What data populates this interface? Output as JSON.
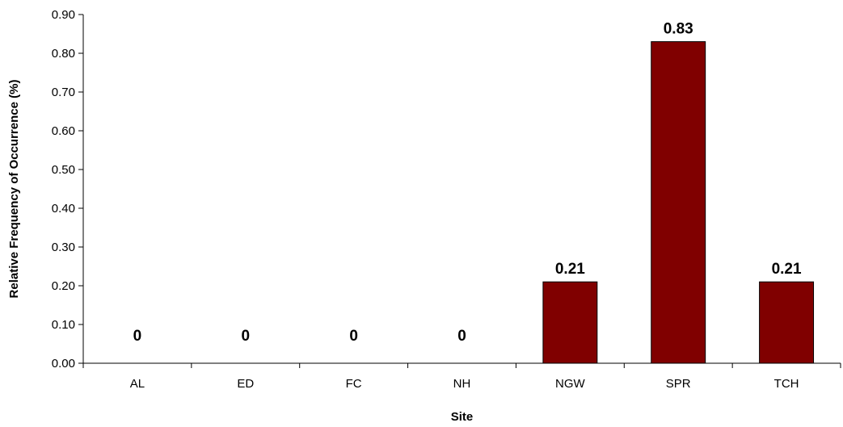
{
  "chart_data": {
    "type": "bar",
    "title": "",
    "xlabel": "Site",
    "ylabel": "Relative Frequency of Occurrence (%)",
    "categories": [
      "AL",
      "ED",
      "FC",
      "NH",
      "NGW",
      "SPR",
      "TCH"
    ],
    "values": [
      0,
      0,
      0,
      0,
      0.21,
      0.83,
      0.21
    ],
    "data_labels": [
      "0",
      "0",
      "0",
      "0",
      "0.21",
      "0.83",
      "0.21"
    ],
    "yticks": [
      "0.00",
      "0.10",
      "0.20",
      "0.30",
      "0.40",
      "0.50",
      "0.60",
      "0.70",
      "0.80",
      "0.90"
    ],
    "ylim": [
      0,
      0.9
    ],
    "grid": false,
    "legend": "none",
    "bar_color": "#800000",
    "bar_edge_color": "#000000"
  }
}
